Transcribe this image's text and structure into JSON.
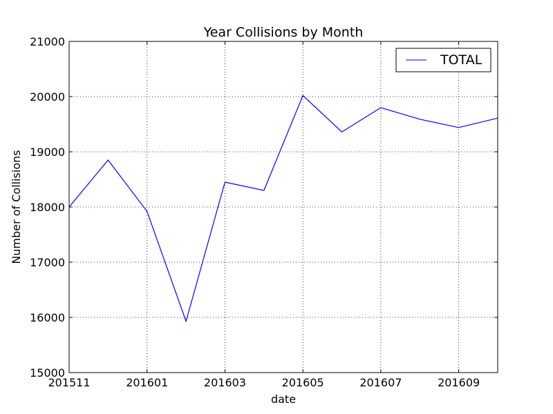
{
  "chart_data": {
    "type": "line",
    "title": "Year Collisions by Month",
    "xlabel": "date",
    "ylabel": "Number of Collisions",
    "x": [
      "201511",
      "201512",
      "201601",
      "201602",
      "201603",
      "201604",
      "201605",
      "201606",
      "201607",
      "201608",
      "201609",
      "201610"
    ],
    "x_tick_labels": [
      "201511",
      "201601",
      "201603",
      "201605",
      "201607",
      "201609"
    ],
    "ylim": [
      15000,
      21000
    ],
    "y_ticks": [
      15000,
      16000,
      17000,
      18000,
      19000,
      20000,
      21000
    ],
    "series": [
      {
        "name": "TOTAL",
        "color": "#0000ff",
        "values": [
          18000,
          18850,
          17920,
          15930,
          18450,
          18300,
          20020,
          19360,
          19800,
          19590,
          19440,
          19610
        ]
      }
    ],
    "grid": true,
    "legend_position": "top-right"
  }
}
